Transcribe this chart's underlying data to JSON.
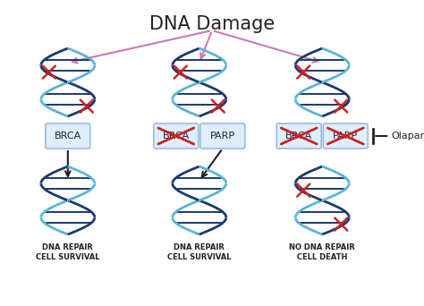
{
  "title": "DNA Damage",
  "bg_color": "#ffffff",
  "title_fontsize": 15,
  "arrow_color": "#cc7ab0",
  "dna_dark": "#1a3a6e",
  "dna_light": "#5ab4d6",
  "x_color": "#cc2222",
  "box_facecolor": "#ddeeff",
  "box_edgecolor": "#99bbdd",
  "cross_color": "#cc2222",
  "black": "#222222",
  "columns": [
    0.16,
    0.47,
    0.76
  ],
  "labels_bottom": [
    "DNA REPAIR\nCELL SURVIVAL",
    "DNA REPAIR\nCELL SURVIVAL",
    "NO DNA REPAIR\nCELL DEATH"
  ],
  "box_label_col1": "BRCA",
  "box_labels_col2": [
    "BRCA",
    "PARP"
  ],
  "box_labels_col3": [
    "BRCA",
    "PARP"
  ],
  "olaparib_text": "Olaparib"
}
